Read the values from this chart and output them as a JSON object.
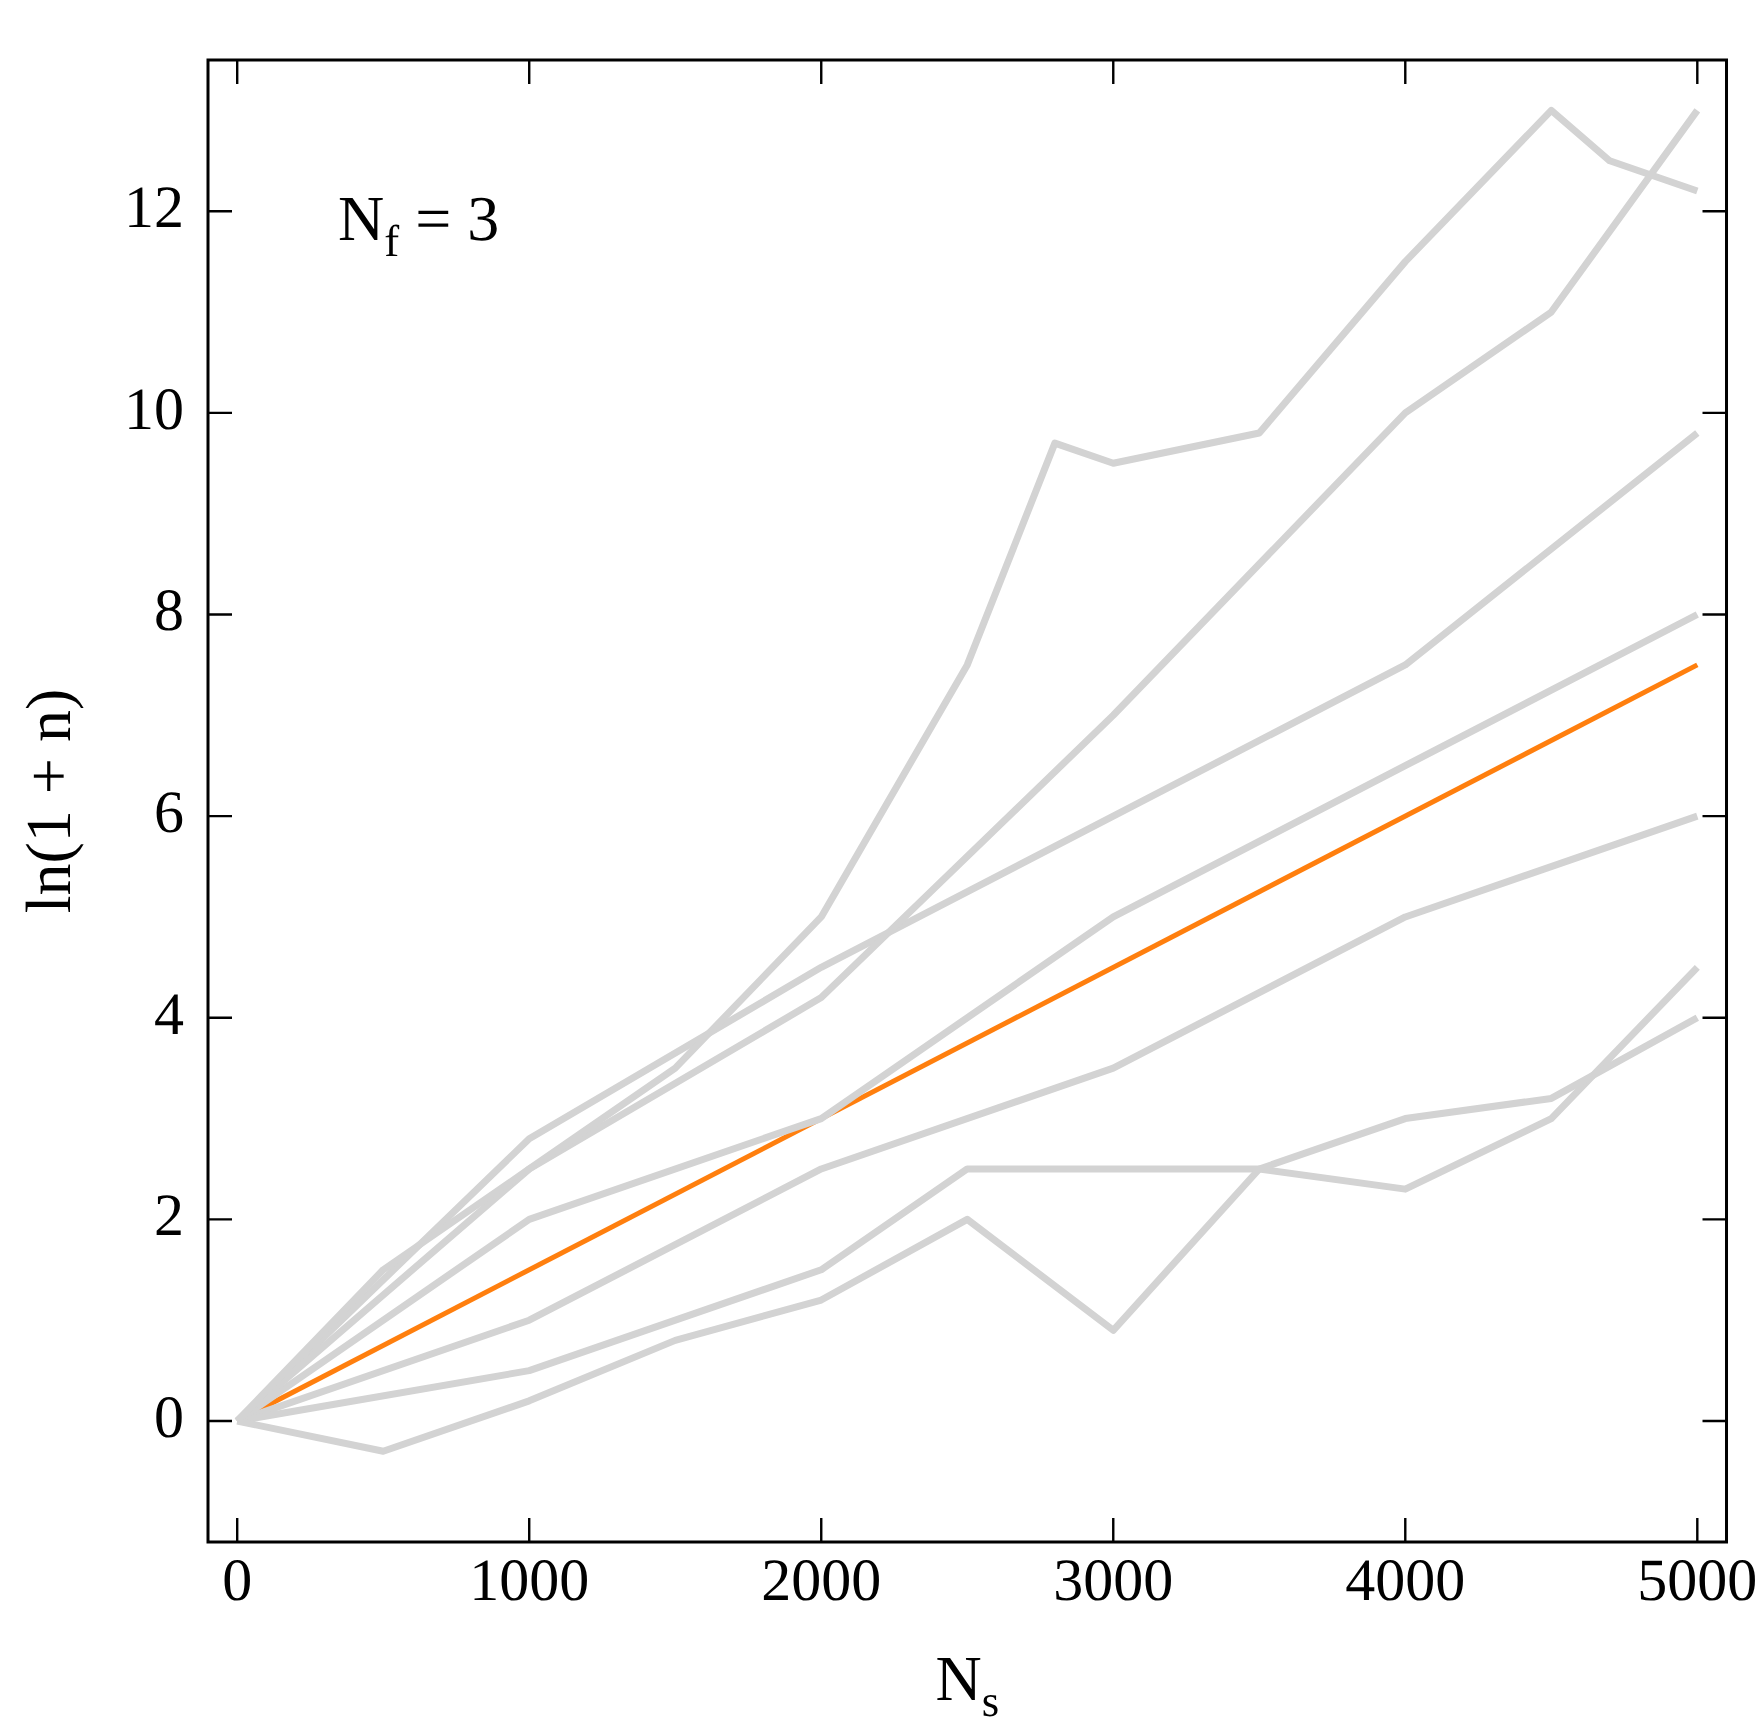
{
  "chart_data": {
    "type": "line",
    "xlabel": "N$_{s}$",
    "ylabel": "ln(1 + n)",
    "annotations": [
      "N$_{f}$ = 3"
    ],
    "xlim": [
      -100,
      5100
    ],
    "ylim": [
      -1.2,
      13.5
    ],
    "xticks": [
      0,
      1000,
      2000,
      3000,
      4000,
      5000
    ],
    "yticks": [
      0,
      2,
      4,
      6,
      8,
      10,
      12
    ],
    "grid": false,
    "legend": false,
    "marker": "none",
    "line_style": "solid",
    "series": [
      {
        "color": "#d3d3d3",
        "x": [
          0,
          500,
          1000,
          1500,
          2000,
          2500,
          2800,
          3000,
          3500,
          4000,
          4500,
          4700,
          5000
        ],
        "values": [
          0,
          1.5,
          2.5,
          3.5,
          5,
          7.5,
          9.7,
          9.5,
          9.8,
          11.5,
          13,
          12.5,
          12.2
        ]
      },
      {
        "color": "#d3d3d3",
        "x": [
          0,
          1000,
          2000,
          3000,
          4000,
          4500,
          5000
        ],
        "values": [
          0,
          2.5,
          4.2,
          7,
          10,
          11,
          13
        ]
      },
      {
        "color": "#d3d3d3",
        "x": [
          0,
          500,
          1000,
          1500,
          2000,
          2500,
          3000,
          3500,
          4000,
          4500,
          5000
        ],
        "values": [
          0,
          -0.3,
          0.2,
          0.8,
          1.2,
          2,
          0.9,
          2.5,
          3,
          3.2,
          4
        ]
      },
      {
        "color": "#d3d3d3",
        "x": [
          0,
          1000,
          2000,
          2500,
          3000,
          3500,
          4000,
          4500,
          5000
        ],
        "values": [
          0,
          0.5,
          1.5,
          2.5,
          2.5,
          2.5,
          2.3,
          3,
          4.5
        ]
      },
      {
        "color": "#d3d3d3",
        "x": [
          0,
          1000,
          2000,
          3000,
          4000,
          5000
        ],
        "values": [
          0,
          2,
          3,
          5,
          6.5,
          8
        ]
      },
      {
        "color": "#d3d3d3",
        "x": [
          0,
          1000,
          2000,
          3000,
          4000,
          5000
        ],
        "values": [
          0,
          2.8,
          4.5,
          6,
          7.5,
          9.8
        ]
      },
      {
        "color": "#d3d3d3",
        "x": [
          0,
          1000,
          2000,
          3000,
          4000,
          5000
        ],
        "values": [
          0,
          1,
          2.5,
          3.5,
          5,
          6
        ]
      },
      {
        "color": "#ff7f0e",
        "x": [
          0,
          5000
        ],
        "values": [
          0,
          7.5
        ]
      }
    ]
  }
}
